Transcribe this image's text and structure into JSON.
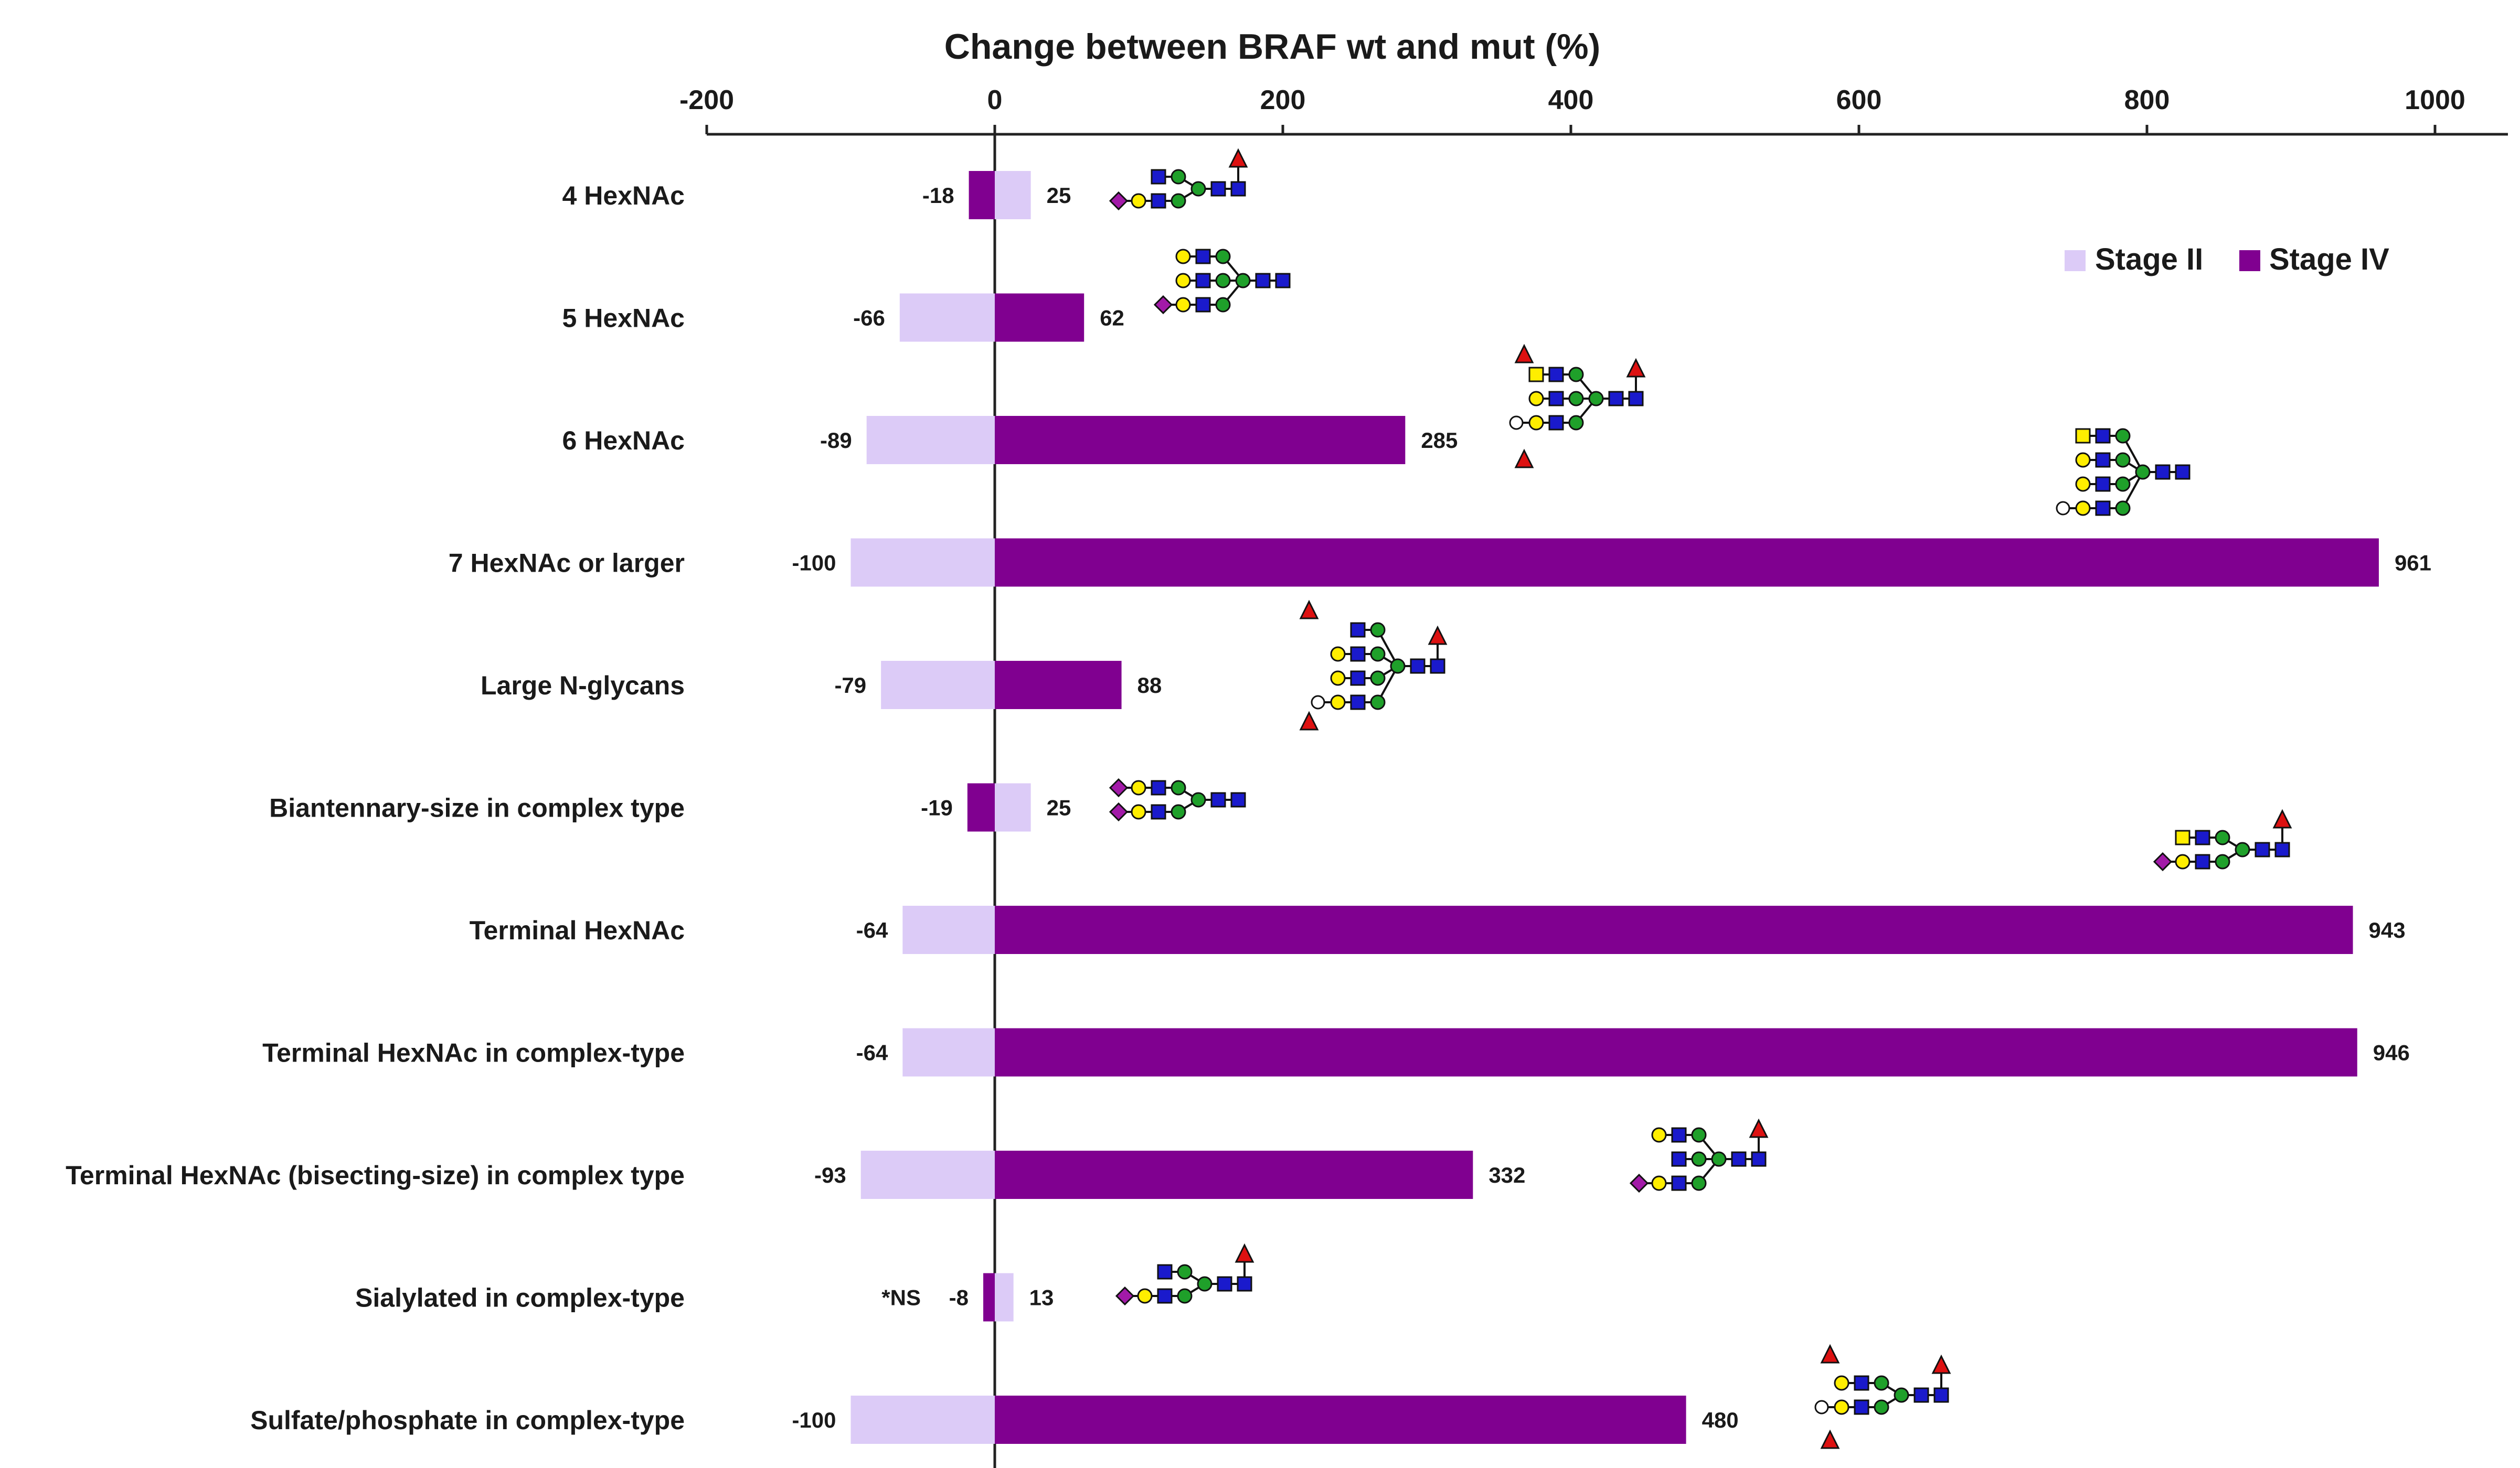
{
  "chart_data": {
    "type": "bar",
    "orientation": "horizontal",
    "title": "Change between BRAF  wt and mut (%)",
    "xlim": [
      -200,
      1000
    ],
    "xticks": [
      -200,
      0,
      200,
      400,
      600,
      800,
      1000
    ],
    "xtick_labels": [
      "-200",
      "0",
      "200",
      "400",
      "600",
      "800",
      "1000"
    ],
    "legend_position": "top-right",
    "categories": [
      "4 HexNAc",
      "5 HexNAc",
      "6 HexNAc",
      "7 HexNAc or larger",
      "Large N-glycans",
      "Biantennary-size in complex type",
      "Terminal HexNAc",
      "Terminal HexNAc in complex-type",
      "Terminal HexNAc (bisecting-size) in complex type",
      "Sialylated in complex-type",
      "Sulfate/phosphate in complex-type"
    ],
    "series": [
      {
        "name": "Stage II",
        "color": "#dccbf7",
        "values": [
          25,
          -66,
          -89,
          -100,
          -79,
          25,
          -64,
          -64,
          -93,
          13,
          -100
        ],
        "labels": [
          "25",
          "-66",
          "-89",
          "-100",
          "-79",
          "25",
          "-64",
          "-64",
          "-93",
          "13",
          "-100"
        ]
      },
      {
        "name": "Stage IV",
        "color": "#800090",
        "values": [
          -18,
          62,
          285,
          961,
          88,
          -19,
          943,
          946,
          332,
          -8,
          480
        ],
        "labels": [
          "-18",
          "62",
          "285",
          "961",
          "88",
          "-19",
          "943",
          "946",
          "332",
          "-8",
          "480"
        ]
      }
    ],
    "annotations": [
      {
        "category": "Sialylated in complex-type",
        "text": "*NS"
      }
    ]
  },
  "glycan_icons": [
    "glycan-4-hexnac",
    "glycan-5-hexnac",
    "glycan-6-hexnac",
    "glycan-7-hexnac",
    "glycan-large",
    "glycan-biantennary",
    "glycan-terminal-hexnac",
    "glycan-bisecting",
    "glycan-sialylated",
    "glycan-sulfate"
  ],
  "colors": {
    "galactose": "#ffee00",
    "glcnac": "#1a1acc",
    "mannose": "#1fa02a",
    "fucose": "#dd1111",
    "sialic_acid": "#a21aa8",
    "galnac": "#ffee00"
  }
}
